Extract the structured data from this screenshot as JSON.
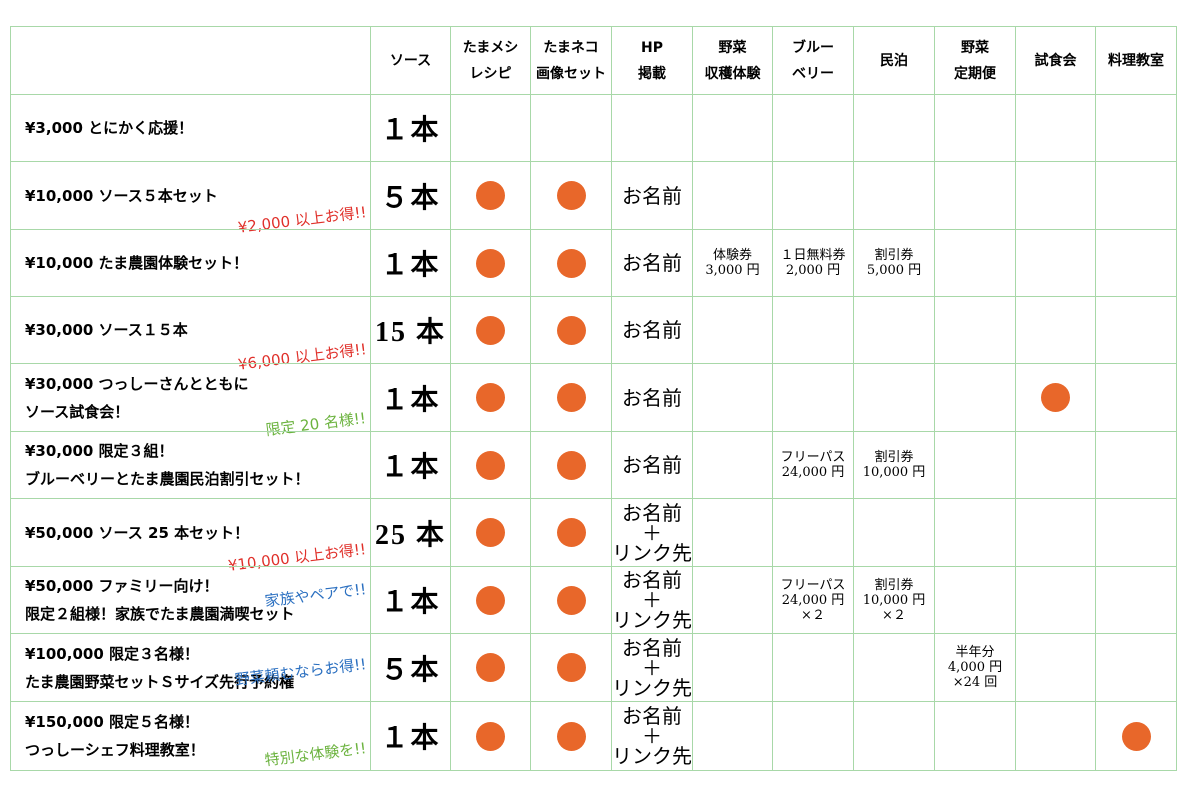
{
  "table": {
    "header": {
      "columns": [
        null,
        "ソース",
        [
          "たまメシ",
          "レシピ"
        ],
        [
          "たまネコ",
          "画像セット"
        ],
        [
          "HP",
          "掲載"
        ],
        [
          "野菜",
          "収穫体験"
        ],
        [
          "ブルー",
          "ベリー"
        ],
        "民泊",
        [
          "野菜",
          "定期便"
        ],
        "試食会",
        "料理教室"
      ]
    },
    "rows": [
      {
        "label": [
          "¥3,000 とにかく応援！"
        ],
        "cells": [
          "１本",
          null,
          null,
          null,
          null,
          null,
          null,
          null,
          null,
          null
        ]
      },
      {
        "label": [
          "¥10,000 ソース５本セット"
        ],
        "note": {
          "text": "¥2,000 以上お得!!",
          "color": "#e0302a"
        },
        "cells": [
          "５本",
          true,
          true,
          "お名前",
          null,
          null,
          null,
          null,
          null,
          null
        ]
      },
      {
        "label": [
          "¥10,000 たま農園体験セット！"
        ],
        "cells": [
          "１本",
          true,
          true,
          "お名前",
          [
            "体験券",
            "3,000 円"
          ],
          [
            "１日無料券",
            "2,000 円"
          ],
          [
            "割引券",
            "5,000 円"
          ],
          null,
          null,
          null
        ]
      },
      {
        "label": [
          "¥30,000 ソース１５本"
        ],
        "note": {
          "text": "¥6,000 以上お得!!",
          "color": "#e0302a"
        },
        "cells": [
          "15 本",
          true,
          true,
          "お名前",
          null,
          null,
          null,
          null,
          null,
          null
        ]
      },
      {
        "label": [
          "¥30,000 つっしーさんとともに",
          "ソース試食会！"
        ],
        "note": {
          "text": "限定 20 名様!!",
          "color": "#6cb33f"
        },
        "cells": [
          "１本",
          true,
          true,
          "お名前",
          null,
          null,
          null,
          null,
          true,
          null
        ]
      },
      {
        "label": [
          "¥30,000 限定３組！",
          "ブルーベリーとたま農園民泊割引セット！"
        ],
        "cells": [
          "１本",
          true,
          true,
          "お名前",
          null,
          [
            "フリーパス",
            "24,000 円"
          ],
          [
            "割引券",
            "10,000 円"
          ],
          null,
          null,
          null
        ]
      },
      {
        "label": [
          "¥50,000 ソース 25 本セット！"
        ],
        "note": {
          "text": "¥10,000 以上お得!!",
          "color": "#e0302a"
        },
        "cells": [
          "25 本",
          true,
          true,
          [
            "お名前",
            "＋",
            "リンク先"
          ],
          null,
          null,
          null,
          null,
          null,
          null
        ]
      },
      {
        "label": [
          "¥50,000 ファミリー向け！",
          "限定２組様！家族でたま農園満喫セット"
        ],
        "note": {
          "text": "家族やペアで!!",
          "color": "#2a6fc0"
        },
        "cells": [
          "１本",
          true,
          true,
          [
            "お名前",
            "＋",
            "リンク先"
          ],
          null,
          [
            "フリーパス",
            "24,000 円",
            "×２"
          ],
          [
            "割引券",
            "10,000 円",
            "×２"
          ],
          null,
          null,
          null
        ]
      },
      {
        "label": [
          "¥100,000 限定３名様！",
          "たま農園野菜セットＳサイズ先行予約権"
        ],
        "note": {
          "text": "野菜頼むならお得!!",
          "color": "#2a6fc0"
        },
        "cells": [
          "５本",
          true,
          true,
          [
            "お名前",
            "＋",
            "リンク先"
          ],
          null,
          null,
          null,
          [
            "半年分",
            "4,000 円",
            "×24 回"
          ],
          null,
          null
        ]
      },
      {
        "label": [
          "¥150,000 限定５名様！",
          "つっしーシェフ料理教室！"
        ],
        "note": {
          "text": "特別な体験を!!",
          "color": "#6cb33f"
        },
        "cells": [
          "１本",
          true,
          true,
          [
            "お名前",
            "＋",
            "リンク先"
          ],
          null,
          null,
          null,
          null,
          null,
          true
        ]
      }
    ]
  }
}
